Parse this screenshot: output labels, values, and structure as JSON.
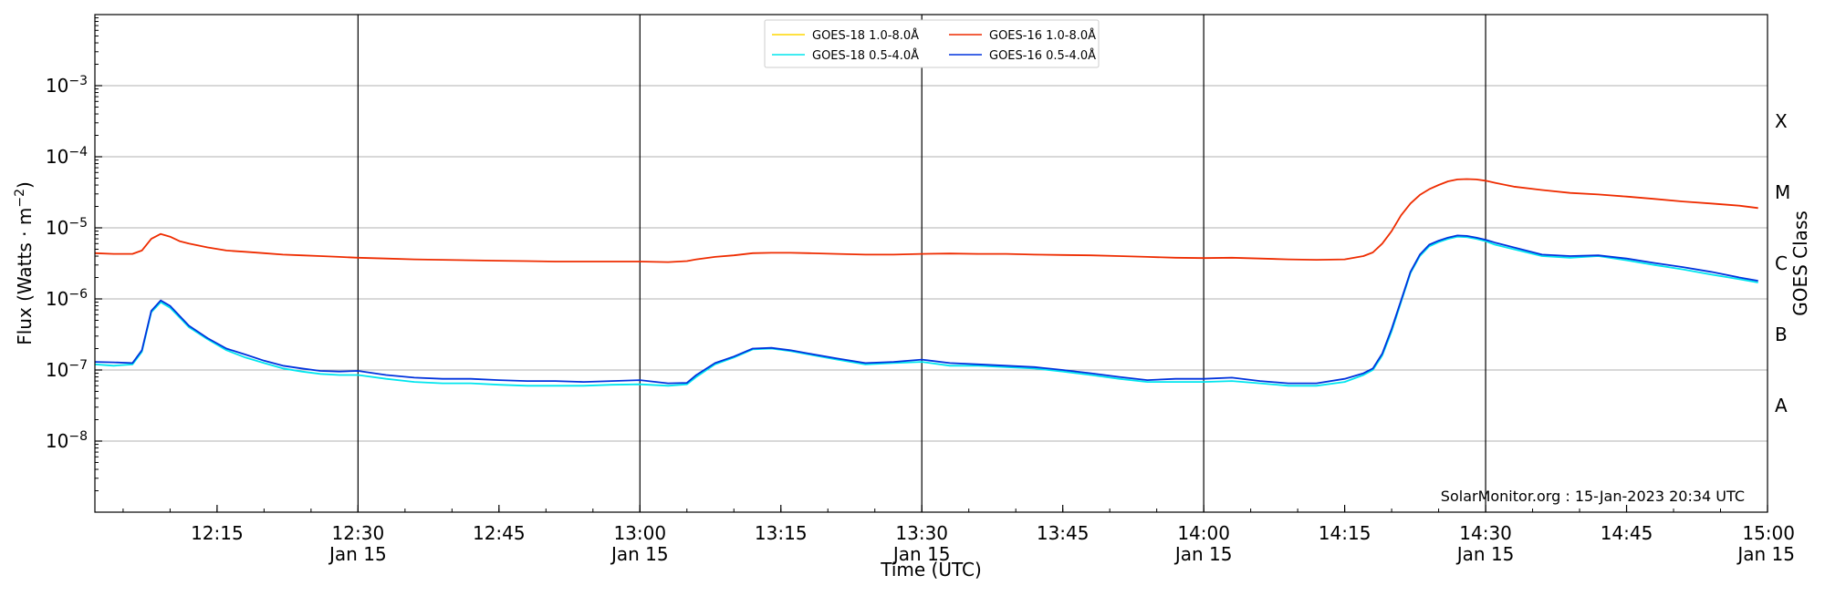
{
  "chart_data": {
    "type": "line",
    "xlabel": "Time (UTC)",
    "ylabel_main": "Flux (Watts · m",
    "ylabel_exp": "−2",
    "ylabel_close": ")",
    "ylabel_right": "GOES Class",
    "xlim": [
      12.0333,
      15.0
    ],
    "ylim_log10": [
      -9,
      -2
    ],
    "y_ticks": [
      {
        "exp": -8,
        "label": "10",
        "sup": "−8"
      },
      {
        "exp": -7,
        "label": "10",
        "sup": "−7"
      },
      {
        "exp": -6,
        "label": "10",
        "sup": "−6"
      },
      {
        "exp": -5,
        "label": "10",
        "sup": "−5"
      },
      {
        "exp": -4,
        "label": "10",
        "sup": "−4"
      },
      {
        "exp": -3,
        "label": "10",
        "sup": "−3"
      }
    ],
    "x_ticks": [
      {
        "t": 12.25,
        "time": "12:15",
        "date": ""
      },
      {
        "t": 12.5,
        "time": "12:30",
        "date": "Jan 15"
      },
      {
        "t": 12.75,
        "time": "12:45",
        "date": ""
      },
      {
        "t": 13.0,
        "time": "13:00",
        "date": "Jan 15"
      },
      {
        "t": 13.25,
        "time": "13:15",
        "date": ""
      },
      {
        "t": 13.5,
        "time": "13:30",
        "date": "Jan 15"
      },
      {
        "t": 13.75,
        "time": "13:45",
        "date": ""
      },
      {
        "t": 14.0,
        "time": "14:00",
        "date": "Jan 15"
      },
      {
        "t": 14.25,
        "time": "14:15",
        "date": ""
      },
      {
        "t": 14.5,
        "time": "14:30",
        "date": "Jan 15"
      },
      {
        "t": 14.75,
        "time": "14:45",
        "date": ""
      },
      {
        "t": 15.0,
        "time": "15:00",
        "date": "Jan 15"
      }
    ],
    "vertical_lines": [
      12.5,
      13.0,
      13.5,
      14.0,
      14.5
    ],
    "grid": "horizontal",
    "classes": [
      {
        "label": "A",
        "exp": -7.5
      },
      {
        "label": "B",
        "exp": -6.5
      },
      {
        "label": "C",
        "exp": -5.5
      },
      {
        "label": "M",
        "exp": -4.5
      },
      {
        "label": "X",
        "exp": -3.5
      }
    ],
    "legend_position": "top-center",
    "series": [
      {
        "name": "GOES-18 1.0-8.0Å",
        "color": "#ffd700",
        "x": [],
        "y": []
      },
      {
        "name": "GOES-18 0.5-4.0Å",
        "color": "#00e5ee",
        "x": [
          12.0333,
          12.0667,
          12.1,
          12.1167,
          12.1333,
          12.15,
          12.1667,
          12.1833,
          12.2,
          12.2333,
          12.2667,
          12.3,
          12.3333,
          12.3667,
          12.4,
          12.4333,
          12.4667,
          12.5,
          12.55,
          12.6,
          12.65,
          12.7,
          12.75,
          12.8,
          12.85,
          12.9,
          12.95,
          13.0,
          13.05,
          13.0833,
          13.1,
          13.1333,
          13.1667,
          13.2,
          13.2333,
          13.2667,
          13.3,
          13.35,
          13.4,
          13.45,
          13.5,
          13.55,
          13.6,
          13.65,
          13.7,
          13.75,
          13.8,
          13.85,
          13.9,
          13.95,
          14.0,
          14.05,
          14.1,
          14.15,
          14.2,
          14.25,
          14.2833,
          14.3,
          14.3167,
          14.3333,
          14.35,
          14.3667,
          14.3833,
          14.4,
          14.4167,
          14.4333,
          14.45,
          14.4667,
          14.4833,
          14.5,
          14.5167,
          14.55,
          14.6,
          14.65,
          14.7,
          14.75,
          14.8,
          14.85,
          14.9,
          14.95,
          14.9833
        ],
        "y": [
          1.2e-07,
          1.15e-07,
          1.2e-07,
          1.8e-07,
          6.5e-07,
          9e-07,
          7.5e-07,
          5.5e-07,
          4e-07,
          2.7e-07,
          1.9e-07,
          1.5e-07,
          1.25e-07,
          1.05e-07,
          9.5e-08,
          8.8e-08,
          8.5e-08,
          8.5e-08,
          7.5e-08,
          6.8e-08,
          6.5e-08,
          6.5e-08,
          6.2e-08,
          6e-08,
          6e-08,
          6e-08,
          6.2e-08,
          6.3e-08,
          6e-08,
          6.3e-08,
          8e-08,
          1.2e-07,
          1.5e-07,
          1.95e-07,
          2e-07,
          1.85e-07,
          1.65e-07,
          1.4e-07,
          1.2e-07,
          1.25e-07,
          1.3e-07,
          1.15e-07,
          1.15e-07,
          1.1e-07,
          1.05e-07,
          9.5e-08,
          8.5e-08,
          7.5e-08,
          6.8e-08,
          6.8e-08,
          6.8e-08,
          7e-08,
          6.5e-08,
          6e-08,
          6e-08,
          6.8e-08,
          8.5e-08,
          1e-07,
          1.6e-07,
          3.5e-07,
          9e-07,
          2.3e-06,
          4e-06,
          5.5e-06,
          6.3e-06,
          7e-06,
          7.5e-06,
          7.4e-06,
          7e-06,
          6.5e-06,
          5.8e-06,
          5e-06,
          4e-06,
          3.8e-06,
          4e-06,
          3.5e-06,
          3e-06,
          2.6e-06,
          2.2e-06,
          1.9e-06,
          1.7e-06
        ]
      },
      {
        "name": "GOES-16 1.0-8.0Å",
        "color": "#ee2c00",
        "x": [
          12.0333,
          12.0667,
          12.1,
          12.1167,
          12.1333,
          12.15,
          12.1667,
          12.1833,
          12.2,
          12.2333,
          12.2667,
          12.3,
          12.3333,
          12.3667,
          12.4,
          12.4333,
          12.4667,
          12.5,
          12.55,
          12.6,
          12.65,
          12.7,
          12.75,
          12.8,
          12.85,
          12.9,
          12.95,
          13.0,
          13.05,
          13.0833,
          13.1,
          13.1333,
          13.1667,
          13.2,
          13.2333,
          13.2667,
          13.3,
          13.35,
          13.4,
          13.45,
          13.5,
          13.55,
          13.6,
          13.65,
          13.7,
          13.75,
          13.8,
          13.85,
          13.9,
          13.95,
          14.0,
          14.05,
          14.1,
          14.15,
          14.2,
          14.25,
          14.2833,
          14.3,
          14.3167,
          14.3333,
          14.35,
          14.3667,
          14.3833,
          14.4,
          14.4167,
          14.4333,
          14.45,
          14.4667,
          14.4833,
          14.5,
          14.5167,
          14.55,
          14.6,
          14.65,
          14.7,
          14.75,
          14.8,
          14.85,
          14.9,
          14.95,
          14.9833
        ],
        "y": [
          4.4e-06,
          4.3e-06,
          4.3e-06,
          4.8e-06,
          7e-06,
          8.2e-06,
          7.5e-06,
          6.5e-06,
          6e-06,
          5.3e-06,
          4.8e-06,
          4.6e-06,
          4.4e-06,
          4.2e-06,
          4.1e-06,
          4e-06,
          3.9e-06,
          3.8e-06,
          3.7e-06,
          3.6e-06,
          3.55e-06,
          3.5e-06,
          3.45e-06,
          3.4e-06,
          3.35e-06,
          3.35e-06,
          3.35e-06,
          3.35e-06,
          3.3e-06,
          3.4e-06,
          3.6e-06,
          3.9e-06,
          4.1e-06,
          4.4e-06,
          4.45e-06,
          4.45e-06,
          4.4e-06,
          4.3e-06,
          4.2e-06,
          4.2e-06,
          4.3e-06,
          4.35e-06,
          4.3e-06,
          4.3e-06,
          4.2e-06,
          4.15e-06,
          4.1e-06,
          4e-06,
          3.9e-06,
          3.8e-06,
          3.75e-06,
          3.8e-06,
          3.7e-06,
          3.6e-06,
          3.55e-06,
          3.6e-06,
          4e-06,
          4.5e-06,
          6e-06,
          9e-06,
          1.5e-05,
          2.2e-05,
          2.9e-05,
          3.5e-05,
          4e-05,
          4.5e-05,
          4.8e-05,
          4.85e-05,
          4.8e-05,
          4.6e-05,
          4.3e-05,
          3.8e-05,
          3.4e-05,
          3.1e-05,
          2.95e-05,
          2.75e-05,
          2.55e-05,
          2.35e-05,
          2.2e-05,
          2.05e-05,
          1.9e-05
        ]
      },
      {
        "name": "GOES-16 0.5-4.0Å",
        "color": "#0033dd",
        "x": [
          12.0333,
          12.0667,
          12.1,
          12.1167,
          12.1333,
          12.15,
          12.1667,
          12.1833,
          12.2,
          12.2333,
          12.2667,
          12.3,
          12.3333,
          12.3667,
          12.4,
          12.4333,
          12.4667,
          12.5,
          12.55,
          12.6,
          12.65,
          12.7,
          12.75,
          12.8,
          12.85,
          12.9,
          12.95,
          13.0,
          13.05,
          13.0833,
          13.1,
          13.1333,
          13.1667,
          13.2,
          13.2333,
          13.2667,
          13.3,
          13.35,
          13.4,
          13.45,
          13.5,
          13.55,
          13.6,
          13.65,
          13.7,
          13.75,
          13.8,
          13.85,
          13.9,
          13.95,
          14.0,
          14.05,
          14.1,
          14.15,
          14.2,
          14.25,
          14.2833,
          14.3,
          14.3167,
          14.3333,
          14.35,
          14.3667,
          14.3833,
          14.4,
          14.4167,
          14.4333,
          14.45,
          14.4667,
          14.4833,
          14.5,
          14.5167,
          14.55,
          14.6,
          14.65,
          14.7,
          14.75,
          14.8,
          14.85,
          14.9,
          14.95,
          14.9833
        ],
        "y": [
          1.3e-07,
          1.28e-07,
          1.25e-07,
          1.9e-07,
          6.8e-07,
          9.5e-07,
          8e-07,
          5.8e-07,
          4.2e-07,
          2.8e-07,
          2e-07,
          1.65e-07,
          1.35e-07,
          1.15e-07,
          1.05e-07,
          9.7e-08,
          9.5e-08,
          9.7e-08,
          8.5e-08,
          7.8e-08,
          7.5e-08,
          7.5e-08,
          7.2e-08,
          7e-08,
          7e-08,
          6.8e-08,
          7e-08,
          7.2e-08,
          6.5e-08,
          6.6e-08,
          8.5e-08,
          1.25e-07,
          1.55e-07,
          2e-07,
          2.05e-07,
          1.9e-07,
          1.7e-07,
          1.45e-07,
          1.25e-07,
          1.3e-07,
          1.4e-07,
          1.25e-07,
          1.2e-07,
          1.15e-07,
          1.1e-07,
          1e-07,
          9e-08,
          8e-08,
          7.2e-08,
          7.5e-08,
          7.5e-08,
          7.8e-08,
          7e-08,
          6.5e-08,
          6.5e-08,
          7.5e-08,
          9e-08,
          1.05e-07,
          1.7e-07,
          3.8e-07,
          9.5e-07,
          2.4e-06,
          4.2e-06,
          5.8e-06,
          6.6e-06,
          7.3e-06,
          7.8e-06,
          7.7e-06,
          7.3e-06,
          6.8e-06,
          6.2e-06,
          5.3e-06,
          4.2e-06,
          4e-06,
          4.1e-06,
          3.7e-06,
          3.2e-06,
          2.8e-06,
          2.4e-06,
          2e-06,
          1.8e-06
        ]
      }
    ]
  },
  "watermark": "SolarMonitor.org : 15-Jan-2023 20:34 UTC"
}
